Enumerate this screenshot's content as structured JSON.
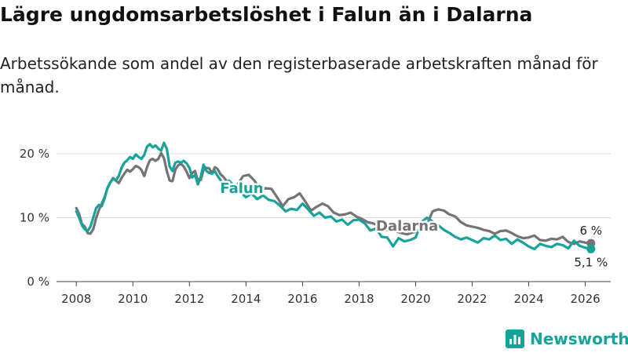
{
  "title": "Lägre ungdomsarbetslöshet i Falun än i Dalarna",
  "subtitle": "Arbetssökande som andel av den registerbaserade arbetskraften månad för månad.",
  "brand": {
    "name": "Newsworthy",
    "icon": "bar-chart-logo-icon",
    "color": "#17a29a"
  },
  "chart_data": {
    "type": "line",
    "xlim": [
      2007.3,
      2026.9
    ],
    "ylim": [
      0,
      21.5
    ],
    "x_ticks": [
      2008,
      2010,
      2012,
      2014,
      2016,
      2018,
      2020,
      2022,
      2024,
      2026
    ],
    "y_ticks": [
      0,
      10,
      20
    ],
    "y_tick_labels": [
      "0 %",
      "10 %",
      "20 %"
    ],
    "grid": "horizontal",
    "series": [
      {
        "name": "Dalarna",
        "color": "#777275",
        "end_label": "6 %",
        "x": [
          2008.0,
          2008.1,
          2008.2,
          2008.3,
          2008.4,
          2008.5,
          2008.6,
          2008.7,
          2008.8,
          2008.9,
          2009.0,
          2009.1,
          2009.2,
          2009.3,
          2009.4,
          2009.5,
          2009.6,
          2009.7,
          2009.8,
          2009.9,
          2010.0,
          2010.1,
          2010.2,
          2010.3,
          2010.4,
          2010.5,
          2010.6,
          2010.7,
          2010.8,
          2010.9,
          2011.0,
          2011.1,
          2011.2,
          2011.3,
          2011.4,
          2011.5,
          2011.6,
          2011.7,
          2011.8,
          2011.9,
          2012.0,
          2012.1,
          2012.2,
          2012.3,
          2012.4,
          2012.5,
          2012.6,
          2012.7,
          2012.8,
          2012.9,
          2013.0,
          2013.1,
          2013.2,
          2013.3,
          2013.5,
          2013.7,
          2013.9,
          2014.1,
          2014.3,
          2014.5,
          2014.7,
          2014.9,
          2015.1,
          2015.3,
          2015.5,
          2015.7,
          2015.9,
          2016.1,
          2016.3,
          2016.5,
          2016.7,
          2016.9,
          2017.1,
          2017.3,
          2017.5,
          2017.7,
          2017.9,
          2018.1,
          2018.3,
          2018.5,
          2018.7,
          2018.9,
          2019.1,
          2019.3,
          2019.5,
          2019.7,
          2019.9,
          2020.1,
          2020.2,
          2020.4,
          2020.6,
          2020.8,
          2021.0,
          2021.2,
          2021.4,
          2021.6,
          2021.8,
          2022.0,
          2022.2,
          2022.4,
          2022.6,
          2022.8,
          2023.0,
          2023.2,
          2023.4,
          2023.6,
          2023.8,
          2024.0,
          2024.2,
          2024.4,
          2024.6,
          2024.8,
          2025.0,
          2025.2,
          2025.4,
          2025.6,
          2025.8,
          2026.0,
          2026.2
        ],
        "y": [
          11.5,
          10.6,
          9.0,
          8.6,
          7.6,
          7.5,
          8.2,
          9.9,
          11.2,
          12.2,
          13.2,
          14.6,
          15.5,
          16.2,
          15.8,
          15.4,
          16.2,
          16.9,
          17.5,
          17.2,
          17.6,
          18.1,
          17.9,
          17.5,
          16.5,
          17.9,
          19.0,
          19.2,
          18.9,
          19.2,
          20.1,
          19.3,
          17.3,
          15.8,
          15.7,
          17.5,
          18.2,
          18.4,
          18.0,
          17.2,
          16.2,
          17.0,
          17.3,
          15.8,
          15.9,
          17.5,
          17.8,
          17.7,
          16.9,
          17.9,
          17.6,
          16.8,
          16.4,
          15.8,
          14.3,
          15.2,
          16.5,
          16.7,
          15.8,
          14.4,
          14.6,
          14.5,
          13.2,
          11.8,
          12.9,
          13.2,
          13.8,
          12.5,
          11.1,
          11.7,
          12.2,
          11.8,
          10.8,
          10.4,
          10.5,
          10.8,
          10.2,
          9.8,
          9.3,
          9.1,
          8.7,
          8.1,
          8.0,
          7.9,
          7.6,
          7.4,
          7.7,
          7.9,
          8.2,
          8.9,
          11.0,
          11.3,
          11.1,
          10.5,
          10.2,
          9.3,
          8.8,
          8.6,
          8.4,
          8.1,
          7.9,
          7.5,
          7.9,
          8.0,
          7.6,
          7.1,
          6.8,
          6.9,
          7.2,
          6.5,
          6.4,
          6.7,
          6.6,
          7.0,
          6.2,
          5.9,
          6.3,
          6.1,
          6.0
        ]
      },
      {
        "name": "Falun",
        "color": "#17a29a",
        "end_label": "5,1 %",
        "x": [
          2008.0,
          2008.1,
          2008.2,
          2008.3,
          2008.4,
          2008.5,
          2008.6,
          2008.7,
          2008.8,
          2008.9,
          2009.0,
          2009.1,
          2009.2,
          2009.3,
          2009.4,
          2009.5,
          2009.6,
          2009.7,
          2009.8,
          2009.9,
          2010.0,
          2010.1,
          2010.2,
          2010.3,
          2010.4,
          2010.5,
          2010.6,
          2010.7,
          2010.8,
          2010.9,
          2011.0,
          2011.1,
          2011.2,
          2011.3,
          2011.4,
          2011.5,
          2011.6,
          2011.7,
          2011.8,
          2011.9,
          2012.0,
          2012.1,
          2012.2,
          2012.3,
          2012.4,
          2012.5,
          2012.6,
          2012.7,
          2012.8,
          2012.9,
          2013.0,
          2013.1,
          2013.2,
          2013.4,
          2013.6,
          2013.8,
          2014.0,
          2014.2,
          2014.4,
          2014.6,
          2014.8,
          2015.0,
          2015.2,
          2015.4,
          2015.6,
          2015.8,
          2016.0,
          2016.2,
          2016.4,
          2016.6,
          2016.8,
          2017.0,
          2017.2,
          2017.4,
          2017.6,
          2017.8,
          2018.0,
          2018.2,
          2018.4,
          2018.6,
          2018.8,
          2019.0,
          2019.2,
          2019.4,
          2019.6,
          2019.8,
          2020.0,
          2020.2,
          2020.4,
          2020.6,
          2020.8,
          2021.0,
          2021.2,
          2021.4,
          2021.6,
          2021.8,
          2022.0,
          2022.2,
          2022.4,
          2022.6,
          2022.8,
          2023.0,
          2023.2,
          2023.4,
          2023.6,
          2023.8,
          2024.0,
          2024.2,
          2024.4,
          2024.6,
          2024.8,
          2025.0,
          2025.2,
          2025.4,
          2025.6,
          2025.8,
          2026.0,
          2026.2
        ],
        "y": [
          11.0,
          10.0,
          8.8,
          8.2,
          7.9,
          8.6,
          10.0,
          11.5,
          12.0,
          11.8,
          13.0,
          14.6,
          15.5,
          16.1,
          15.8,
          16.5,
          17.8,
          18.6,
          19.0,
          19.5,
          19.2,
          19.9,
          19.5,
          19.2,
          19.8,
          21.1,
          21.5,
          21.0,
          21.3,
          20.8,
          20.5,
          21.7,
          20.8,
          18.0,
          17.3,
          18.6,
          18.8,
          18.6,
          18.9,
          18.5,
          17.8,
          16.3,
          16.7,
          15.2,
          16.4,
          18.3,
          17.3,
          17.0,
          16.9,
          17.3,
          16.5,
          15.9,
          15.2,
          15.8,
          14.9,
          14.0,
          13.2,
          13.8,
          12.9,
          13.5,
          12.8,
          12.6,
          11.9,
          11.0,
          11.4,
          11.2,
          12.2,
          11.3,
          10.3,
          10.8,
          10.0,
          10.2,
          9.4,
          9.7,
          8.9,
          9.6,
          9.7,
          9.1,
          8.0,
          8.3,
          7.0,
          6.9,
          5.5,
          6.8,
          6.3,
          6.5,
          6.9,
          9.3,
          10.0,
          9.4,
          8.8,
          8.1,
          7.6,
          7.0,
          6.6,
          6.9,
          6.5,
          6.1,
          6.8,
          6.6,
          7.2,
          6.5,
          6.7,
          5.9,
          6.6,
          6.1,
          5.5,
          5.1,
          5.9,
          5.6,
          5.4,
          5.9,
          5.7,
          5.2,
          6.4,
          5.6,
          5.3,
          5.1
        ]
      }
    ],
    "annotations": [
      {
        "text": "Falun",
        "series": "Falun",
        "x": 2013.85,
        "y": 14.6
      },
      {
        "text": "Dalarna",
        "series": "Dalarna",
        "x": 2019.7,
        "y": 8.7
      }
    ]
  }
}
